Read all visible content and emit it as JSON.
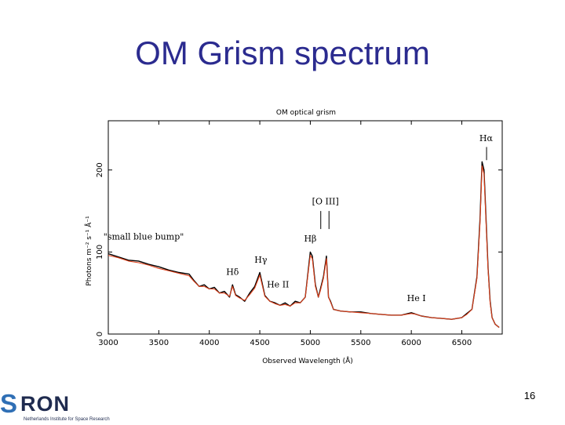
{
  "slide": {
    "title": "OM Grism spectrum",
    "page_number": "16"
  },
  "logo": {
    "mark": "S",
    "word": "RON",
    "subtitle": "Netherlands Institute for Space Research"
  },
  "chart_data": {
    "type": "line",
    "title": "OM optical grism",
    "xlabel": "Observed Wavelength (Å)",
    "ylabel": "Photons m⁻² s⁻¹ Å⁻¹",
    "xlim": [
      3000,
      6900
    ],
    "ylim": [
      0,
      260
    ],
    "x_ticks": [
      3000,
      3500,
      4000,
      4500,
      5000,
      5500,
      6000,
      6500
    ],
    "y_ticks": [
      0,
      100,
      200
    ],
    "grid": false,
    "series": [
      {
        "color": "#000000",
        "x": [
          3000,
          3100,
          3200,
          3300,
          3400,
          3500,
          3600,
          3700,
          3800,
          3850,
          3900,
          3950,
          4000,
          4050,
          4100,
          4150,
          4200,
          4230,
          4260,
          4300,
          4350,
          4400,
          4450,
          4500,
          4550,
          4600,
          4650,
          4700,
          4750,
          4800,
          4850,
          4900,
          4950,
          5000,
          5020,
          5050,
          5080,
          5100,
          5130,
          5160,
          5180,
          5200,
          5230,
          5300,
          5400,
          5500,
          5600,
          5700,
          5800,
          5900,
          6000,
          6050,
          6100,
          6200,
          6300,
          6400,
          6500,
          6550,
          6600,
          6650,
          6680,
          6700,
          6720,
          6740,
          6760,
          6780,
          6800,
          6830,
          6870
        ],
        "y": [
          98,
          94,
          90,
          89,
          85,
          82,
          78,
          75,
          73,
          65,
          58,
          60,
          55,
          57,
          50,
          52,
          45,
          60,
          48,
          45,
          40,
          50,
          58,
          75,
          47,
          40,
          38,
          35,
          38,
          34,
          40,
          38,
          45,
          100,
          95,
          60,
          45,
          55,
          70,
          95,
          45,
          40,
          30,
          28,
          27,
          27,
          25,
          24,
          23,
          23,
          26,
          24,
          22,
          20,
          19,
          18,
          20,
          25,
          30,
          70,
          140,
          210,
          200,
          140,
          80,
          40,
          20,
          12,
          8
        ]
      },
      {
        "color": "#e0401a",
        "x": [
          3000,
          3100,
          3200,
          3300,
          3400,
          3500,
          3600,
          3700,
          3800,
          3850,
          3900,
          3950,
          4000,
          4050,
          4100,
          4150,
          4200,
          4230,
          4260,
          4300,
          4350,
          4400,
          4450,
          4500,
          4550,
          4600,
          4650,
          4700,
          4750,
          4800,
          4850,
          4900,
          4950,
          5000,
          5020,
          5050,
          5080,
          5100,
          5130,
          5160,
          5180,
          5200,
          5230,
          5300,
          5400,
          5500,
          5600,
          5700,
          5800,
          5900,
          6000,
          6050,
          6100,
          6200,
          6300,
          6400,
          6500,
          6550,
          6600,
          6650,
          6680,
          6700,
          6720,
          6740,
          6760,
          6780,
          6800,
          6830,
          6870
        ],
        "y": [
          96,
          93,
          89,
          87,
          84,
          80,
          77,
          74,
          71,
          64,
          58,
          58,
          55,
          55,
          50,
          50,
          46,
          58,
          47,
          44,
          41,
          48,
          56,
          72,
          46,
          40,
          37,
          35,
          36,
          34,
          38,
          38,
          45,
          96,
          92,
          58,
          45,
          53,
          68,
          92,
          45,
          39,
          30,
          28,
          27,
          26,
          25,
          24,
          23,
          23,
          25,
          24,
          22,
          20,
          19,
          18,
          20,
          24,
          30,
          68,
          135,
          205,
          195,
          135,
          78,
          38,
          20,
          12,
          8
        ]
      }
    ],
    "annotations": [
      {
        "text": "Hα",
        "x": 6740,
        "y": 235
      },
      {
        "text": "[O III]",
        "x": 5150,
        "y": 158
      },
      {
        "text": "Hβ",
        "x": 5000,
        "y": 113
      },
      {
        "text": "Hγ",
        "x": 4510,
        "y": 87
      },
      {
        "text": "Hδ",
        "x": 4230,
        "y": 72
      },
      {
        "text": "He II",
        "x": 4680,
        "y": 57
      },
      {
        "text": "He I",
        "x": 6050,
        "y": 40
      },
      {
        "text": "\"small blue bump\"",
        "x": 3350,
        "y": 115
      }
    ]
  }
}
